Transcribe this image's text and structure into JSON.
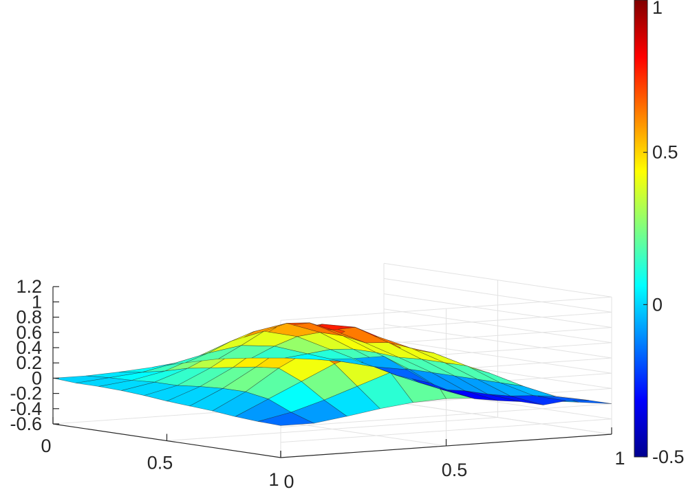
{
  "chart_data": {
    "type": "surface",
    "title": "",
    "xlabel": "",
    "ylabel": "",
    "zlabel": "",
    "colormap": "jet",
    "grid": true,
    "x_range": [
      0,
      1
    ],
    "y_range": [
      0,
      1
    ],
    "z_range": [
      -0.6,
      1.2
    ],
    "x_ticks": [
      "0",
      "0.5",
      "1"
    ],
    "y_ticks": [
      "0",
      "0.5",
      "1"
    ],
    "z_ticks": [
      "-0.6",
      "-0.4",
      "-0.2",
      "0",
      "0.2",
      "0.4",
      "0.6",
      "0.8",
      "1",
      "1.2"
    ],
    "colorbar": {
      "range": [
        -0.5,
        1
      ],
      "ticks": [
        "-0.5",
        "0",
        "0.5",
        "1"
      ],
      "placement": "right"
    },
    "grid_size": [
      11,
      11
    ],
    "z_values": [
      [
        -0.18,
        -0.18,
        -0.12,
        -0.05,
        0.0,
        0.02,
        0.0,
        -0.05,
        -0.1,
        -0.15,
        -0.2
      ],
      [
        -0.17,
        -0.08,
        0.05,
        0.2,
        0.35,
        0.45,
        0.4,
        0.25,
        0.05,
        -0.12,
        -0.2
      ],
      [
        -0.15,
        0.05,
        0.25,
        0.45,
        0.58,
        0.6,
        0.5,
        0.3,
        0.05,
        -0.15,
        -0.25
      ],
      [
        -0.12,
        0.1,
        0.38,
        0.6,
        0.8,
        0.7,
        0.52,
        0.3,
        0.05,
        -0.2,
        -0.35
      ],
      [
        -0.1,
        0.1,
        0.35,
        0.62,
        0.85,
        0.78,
        0.55,
        0.3,
        0.05,
        -0.22,
        -0.35
      ],
      [
        -0.08,
        0.08,
        0.3,
        0.58,
        0.75,
        0.7,
        0.5,
        0.28,
        0.05,
        -0.22,
        -0.38
      ],
      [
        -0.05,
        0.05,
        0.25,
        0.5,
        0.72,
        0.75,
        0.55,
        0.3,
        0.05,
        -0.25,
        -0.4
      ],
      [
        -0.03,
        0.05,
        0.2,
        0.4,
        0.62,
        0.7,
        0.55,
        0.3,
        0.05,
        -0.2,
        -0.35
      ],
      [
        -0.02,
        0.03,
        0.12,
        0.28,
        0.45,
        0.55,
        0.45,
        0.25,
        0.05,
        -0.15,
        -0.28
      ],
      [
        -0.02,
        0.02,
        0.06,
        0.15,
        0.25,
        0.32,
        0.28,
        0.15,
        0.02,
        -0.08,
        -0.15
      ],
      [
        0.0,
        0.0,
        0.02,
        0.05,
        0.08,
        0.1,
        0.08,
        0.05,
        0.0,
        -0.02,
        -0.02
      ]
    ]
  }
}
